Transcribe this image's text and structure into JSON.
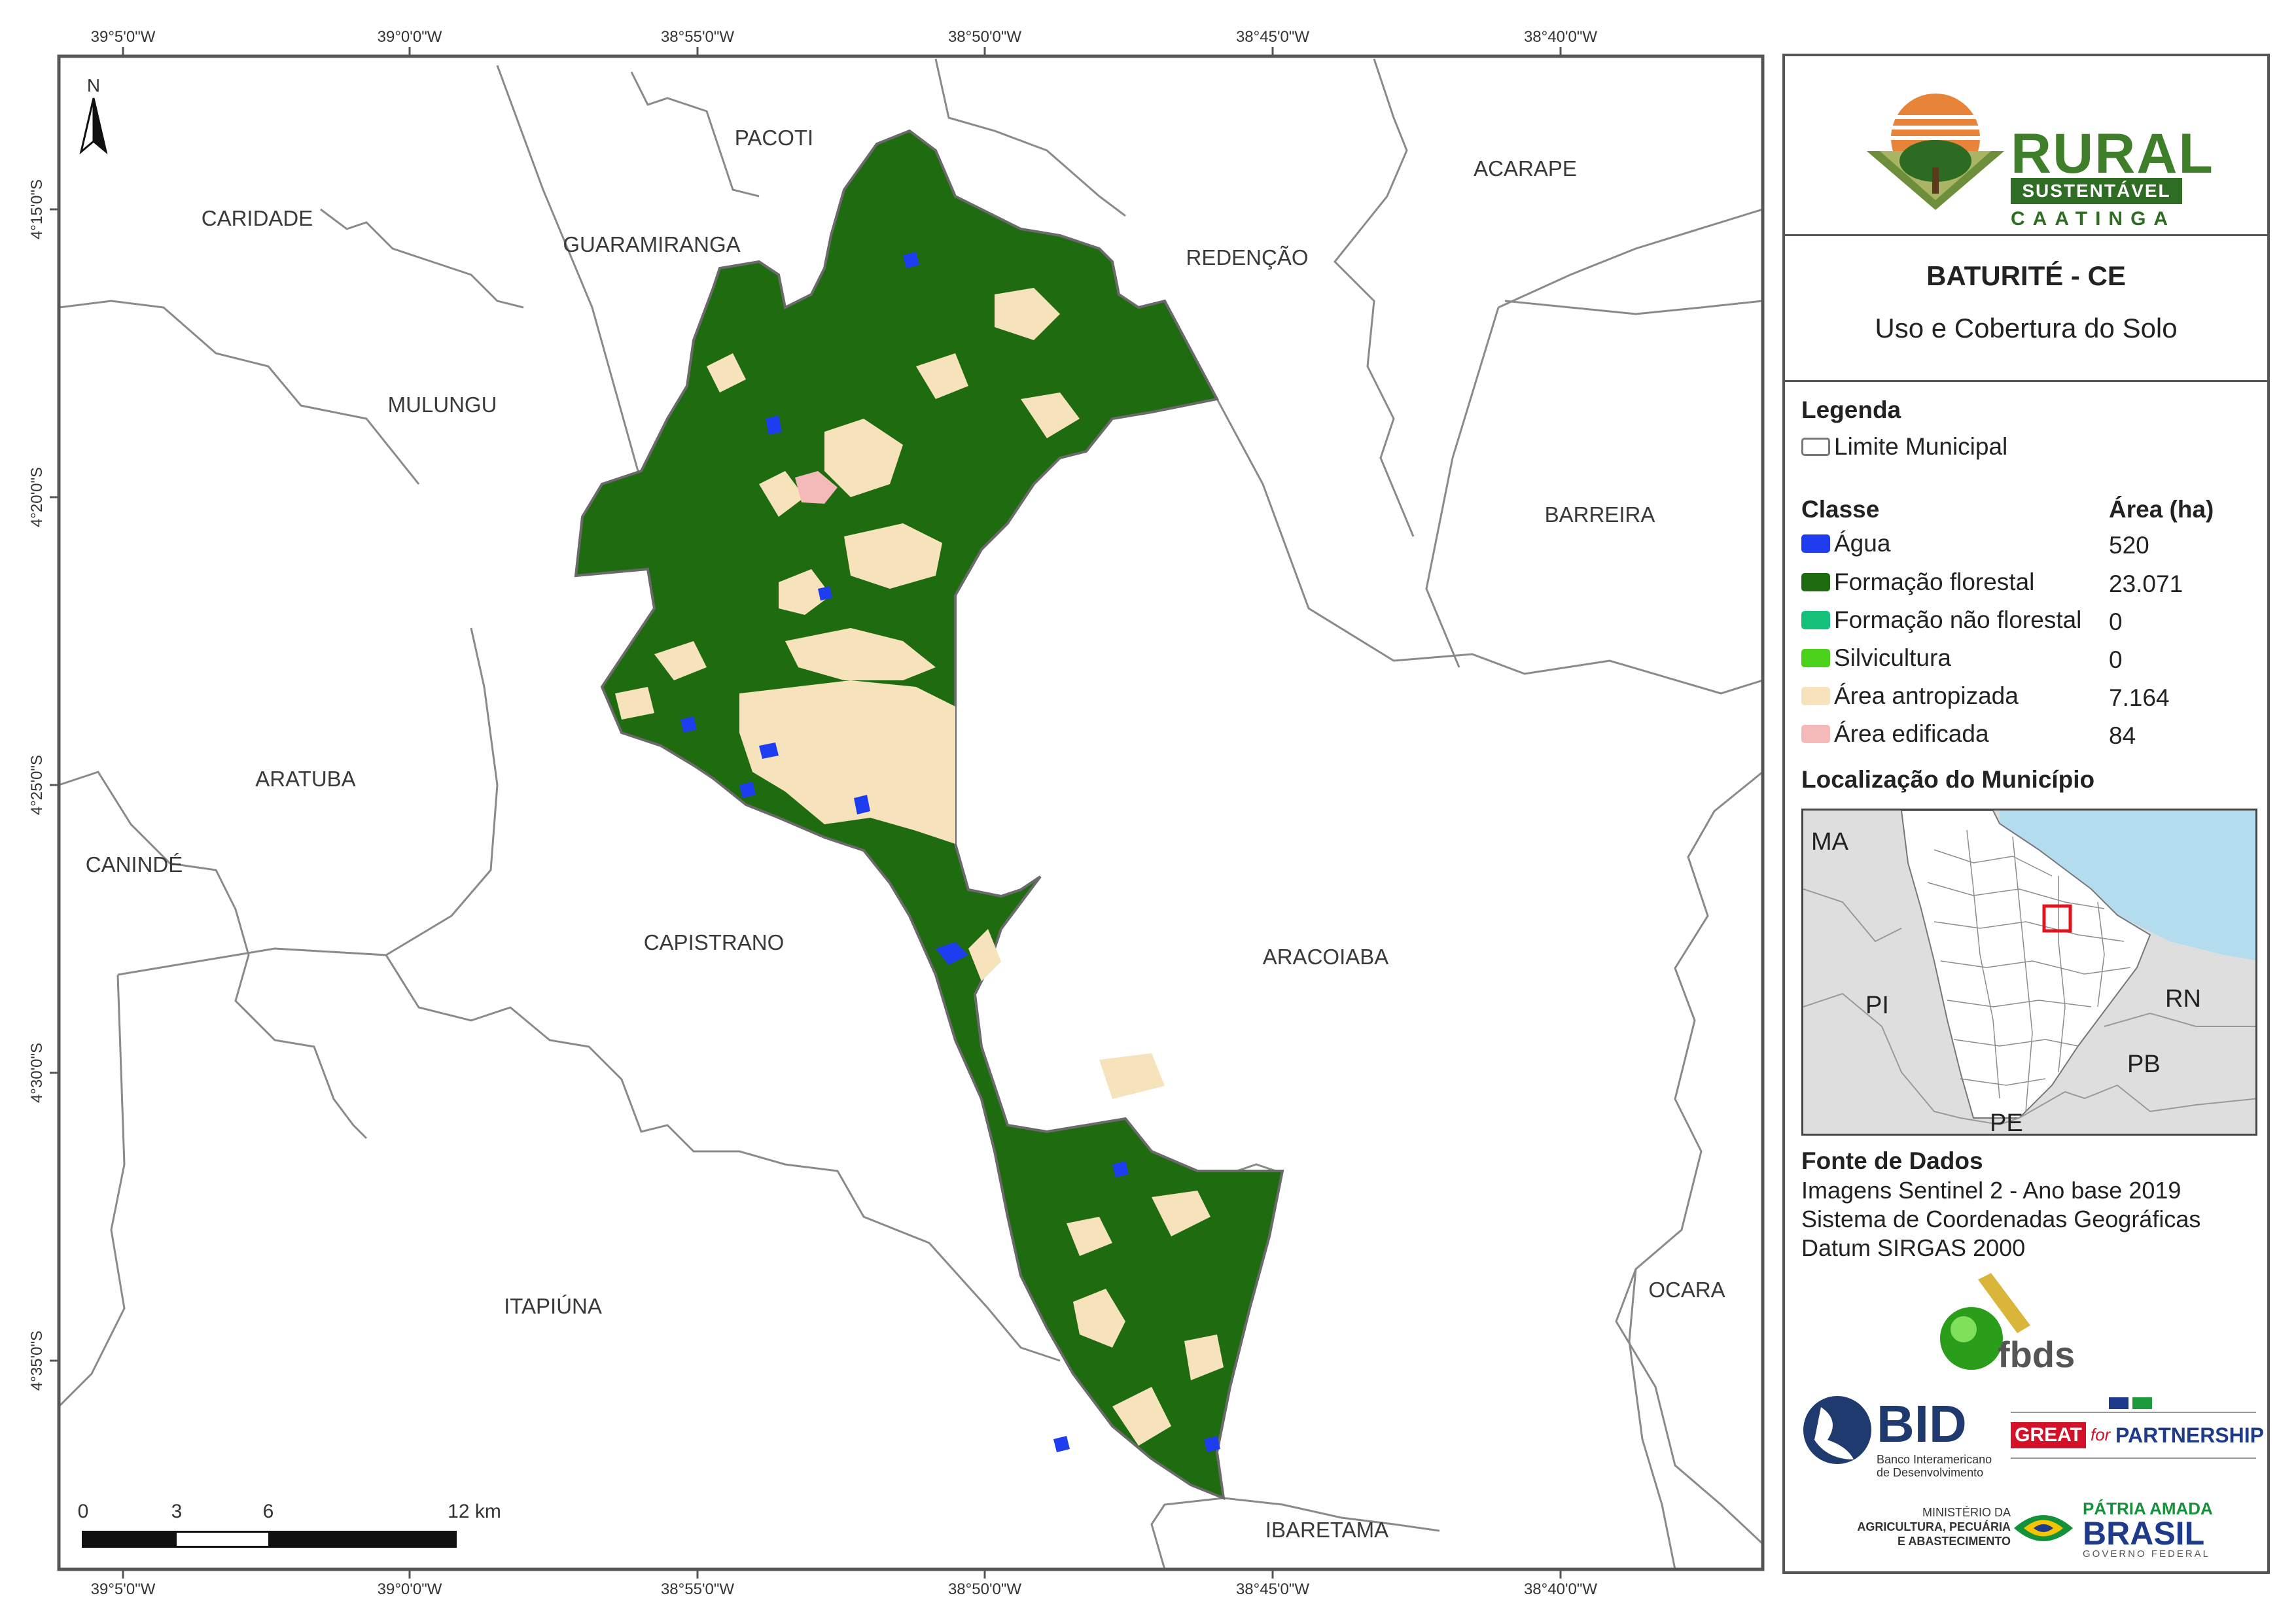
{
  "map": {
    "coord_labels_top": [
      "39°5'0\"W",
      "39°0'0\"W",
      "38°55'0\"W",
      "38°50'0\"W",
      "38°45'0\"W",
      "38°40'0\"W"
    ],
    "coord_labels_bottom": [
      "39°5'0\"W",
      "39°0'0\"W",
      "38°55'0\"W",
      "38°50'0\"W",
      "38°45'0\"W",
      "38°40'0\"W"
    ],
    "coord_labels_left": [
      "4°15'0\"S",
      "4°20'0\"S",
      "4°25'0\"S",
      "4°30'0\"S",
      "4°35'0\"S"
    ],
    "north_label": "N",
    "municipalities": {
      "caridade": "CARIDADE",
      "pacoti": "PACOTI",
      "guaramiranga": "GUARAMIRANGA",
      "redencao": "REDENÇÃO",
      "acarape": "ACARAPE",
      "mulungu": "MULUNGU",
      "barreira": "BARREIRA",
      "aratuba": "ARATUBA",
      "caninde": "CANINDÉ",
      "capistrano": "CAPISTRANO",
      "aracoiaba": "ARACOIABA",
      "itapiuna": "ITAPIÚNA",
      "ocara": "OCARA",
      "ibaretama": "IBARETAMA"
    },
    "scale_labels": [
      "0",
      "3",
      "6",
      "12 km"
    ],
    "colors": {
      "forest": "#1f6b0f",
      "anthropized": "#f7e3bb",
      "water": "#1e3cf0",
      "built": "#f4b9b9",
      "boundary": "#7a7a7a"
    }
  },
  "logo": {
    "rural": "RURAL",
    "sustentavel": "SUSTENTÁVEL",
    "caatinga": "CAATINGA"
  },
  "title": {
    "municipality": "BATURITÉ - CE",
    "subject": "Uso e Cobertura do Solo"
  },
  "legend": {
    "heading": "Legenda",
    "boundary_label": "Limite Municipal",
    "class_header": "Classe",
    "area_header": "Área (ha)",
    "classes": [
      {
        "label": "Água",
        "area": "520",
        "color": "#1e3cf0"
      },
      {
        "label": "Formação florestal",
        "area": "23.071",
        "color": "#1f6b0f"
      },
      {
        "label": "Formação não florestal",
        "area": "0",
        "color": "#15c07a"
      },
      {
        "label": "Silvicultura",
        "area": "0",
        "color": "#4ad21a"
      },
      {
        "label": "Área antropizada",
        "area": "7.164",
        "color": "#f7e3bb"
      },
      {
        "label": "Área edificada",
        "area": "84",
        "color": "#f4b9b9"
      }
    ]
  },
  "location": {
    "heading": "Localização do Município",
    "states": {
      "ma": "MA",
      "pi": "PI",
      "rn": "RN",
      "pb": "PB",
      "pe": "PE"
    }
  },
  "sources": {
    "heading": "Fonte de Dados",
    "lines": [
      "Imagens Sentinel 2 - Ano base 2019",
      "Sistema de Coordenadas Geográficas",
      "Datum SIRGAS 2000"
    ]
  },
  "partners": {
    "fbds": "fbds",
    "bid": "BID",
    "bid_sub1": "Banco Interamericano",
    "bid_sub2": "de Desenvolvimento",
    "great": "GREAT",
    "great_for": "for",
    "partnership": "PARTNERSHIP",
    "ministry1": "MINISTÉRIO DA",
    "ministry2": "AGRICULTURA, PECUÁRIA",
    "ministry3": "E ABASTECIMENTO",
    "patria": "PÁTRIA AMADA",
    "brasil": "BRASIL",
    "gov": "GOVERNO FEDERAL"
  }
}
